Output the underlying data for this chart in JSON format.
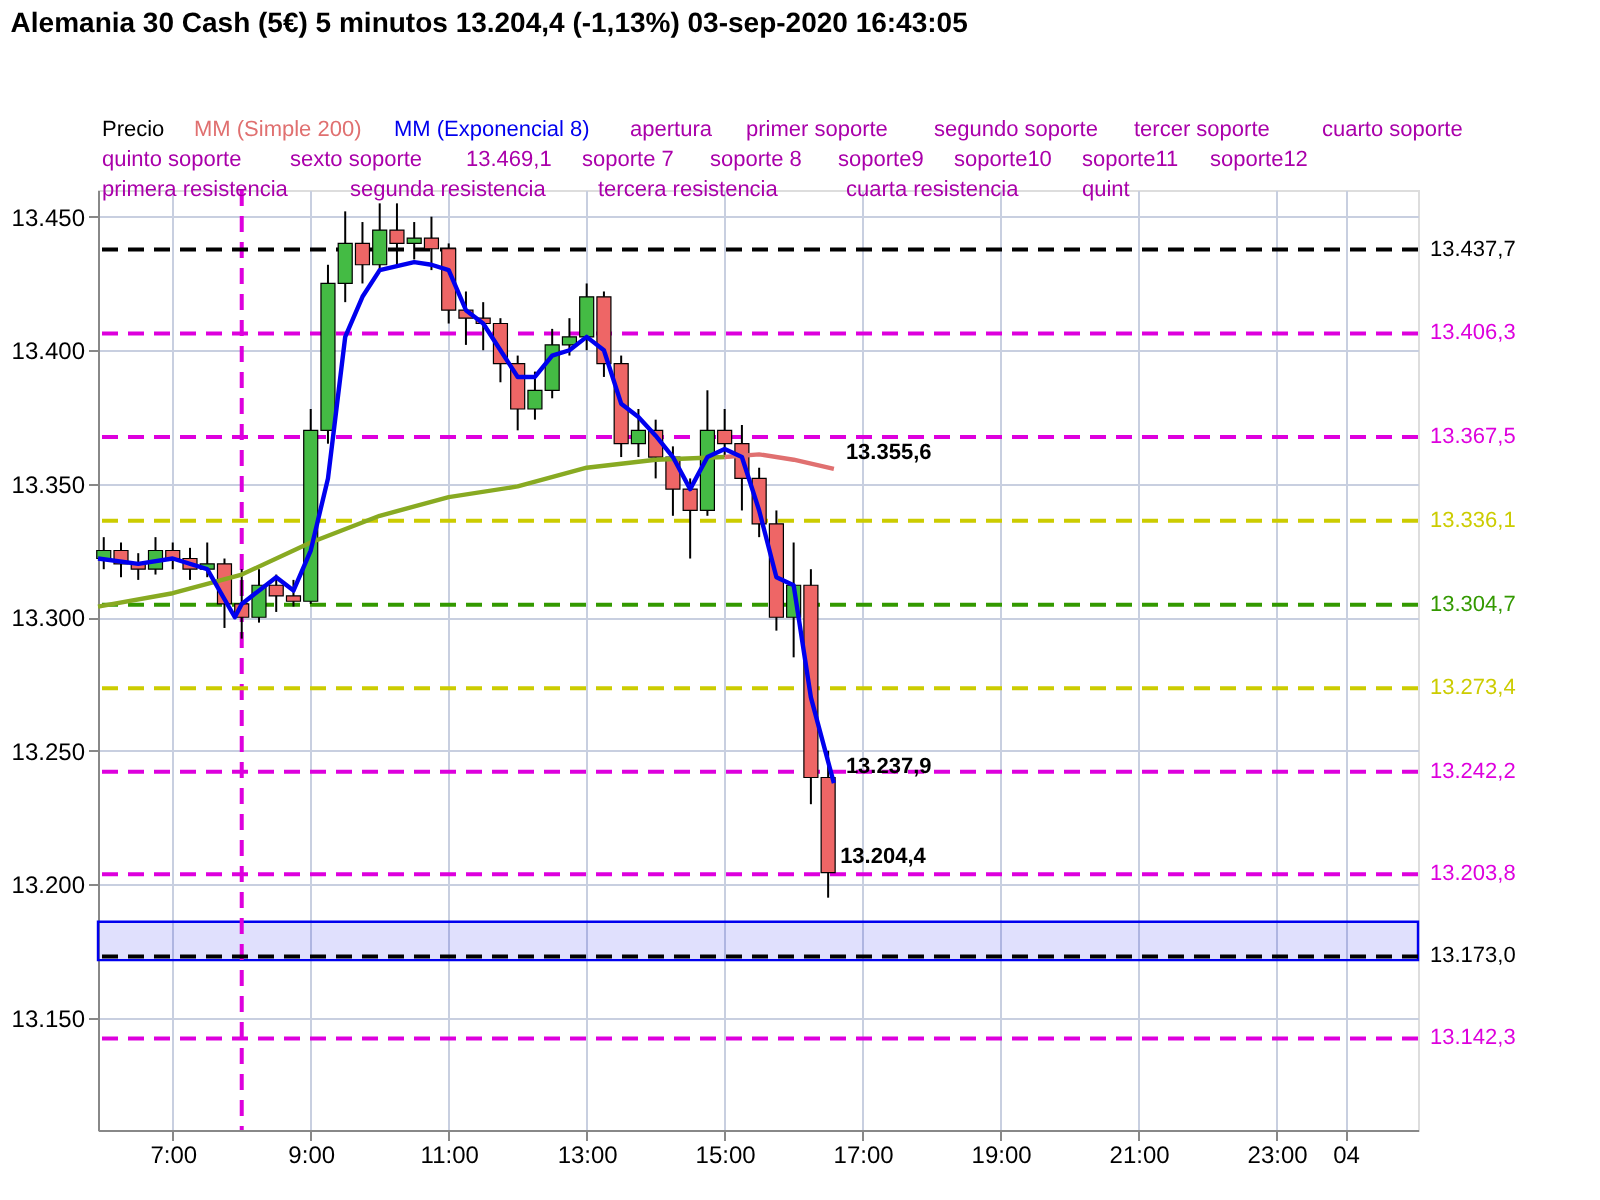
{
  "chart_data": {
    "type": "candlestick",
    "title": "Alemania 30 Cash (5€)   5 minutos   13.204,4 (-1,13%)   03-sep-2020 16:43:05",
    "x": [
      "2020-09-03T06:00",
      "2020-09-03T06:15",
      "2020-09-03T06:30",
      "2020-09-03T06:45",
      "2020-09-03T07:00",
      "2020-09-03T07:15",
      "2020-09-03T07:30",
      "2020-09-03T07:45",
      "2020-09-03T08:00",
      "2020-09-03T08:15",
      "2020-09-03T08:30",
      "2020-09-03T08:45",
      "2020-09-03T09:00",
      "2020-09-03T09:15",
      "2020-09-03T09:30",
      "2020-09-03T09:45",
      "2020-09-03T10:00",
      "2020-09-03T10:15",
      "2020-09-03T10:30",
      "2020-09-03T10:45",
      "2020-09-03T11:00",
      "2020-09-03T11:15",
      "2020-09-03T11:30",
      "2020-09-03T11:45",
      "2020-09-03T12:00",
      "2020-09-03T12:15",
      "2020-09-03T12:30",
      "2020-09-03T12:45",
      "2020-09-03T13:00",
      "2020-09-03T13:15",
      "2020-09-03T13:30",
      "2020-09-03T13:45",
      "2020-09-03T14:00",
      "2020-09-03T14:15",
      "2020-09-03T14:30",
      "2020-09-03T14:45",
      "2020-09-03T15:00",
      "2020-09-03T15:15",
      "2020-09-03T15:30",
      "2020-09-03T15:45",
      "2020-09-03T16:00",
      "2020-09-03T16:15",
      "2020-09-03T16:30"
    ],
    "ohlc": [
      [
        13322,
        13330,
        13318,
        13325
      ],
      [
        13325,
        13328,
        13315,
        13320
      ],
      [
        13320,
        13324,
        13314,
        13318
      ],
      [
        13318,
        13330,
        13316,
        13325
      ],
      [
        13325,
        13328,
        13318,
        13322
      ],
      [
        13322,
        13326,
        13314,
        13318
      ],
      [
        13318,
        13328,
        13315,
        13320
      ],
      [
        13320,
        13322,
        13296,
        13305
      ],
      [
        13305,
        13318,
        13292,
        13300
      ],
      [
        13300,
        13318,
        13298,
        13312
      ],
      [
        13312,
        13316,
        13302,
        13308
      ],
      [
        13308,
        13314,
        13304,
        13306
      ],
      [
        13306,
        13378,
        13305,
        13370
      ],
      [
        13370,
        13432,
        13365,
        13425
      ],
      [
        13425,
        13452,
        13418,
        13440
      ],
      [
        13440,
        13448,
        13425,
        13432
      ],
      [
        13432,
        13455,
        13430,
        13445
      ],
      [
        13445,
        13455,
        13432,
        13440
      ],
      [
        13440,
        13448,
        13434,
        13442
      ],
      [
        13442,
        13450,
        13430,
        13438
      ],
      [
        13438,
        13440,
        13410,
        13415
      ],
      [
        13415,
        13422,
        13402,
        13412
      ],
      [
        13412,
        13418,
        13400,
        13410
      ],
      [
        13410,
        13412,
        13388,
        13395
      ],
      [
        13395,
        13398,
        13370,
        13378
      ],
      [
        13378,
        13392,
        13374,
        13385
      ],
      [
        13385,
        13408,
        13382,
        13402
      ],
      [
        13402,
        13412,
        13398,
        13405
      ],
      [
        13405,
        13425,
        13400,
        13420
      ],
      [
        13420,
        13422,
        13390,
        13395
      ],
      [
        13395,
        13398,
        13360,
        13365
      ],
      [
        13365,
        13378,
        13360,
        13370
      ],
      [
        13370,
        13374,
        13352,
        13360
      ],
      [
        13360,
        13364,
        13338,
        13348
      ],
      [
        13348,
        13352,
        13322,
        13340
      ],
      [
        13340,
        13385,
        13338,
        13370
      ],
      [
        13370,
        13378,
        13360,
        13365
      ],
      [
        13365,
        13372,
        13340,
        13352
      ],
      [
        13352,
        13356,
        13330,
        13335
      ],
      [
        13335,
        13340,
        13295,
        13300
      ],
      [
        13300,
        13328,
        13285,
        13312
      ],
      [
        13312,
        13318,
        13230,
        13240
      ],
      [
        13240,
        13250,
        13195,
        13204.4
      ]
    ],
    "series": [
      {
        "type": "line",
        "color": "#88aa22",
        "x": [
          "2020-09-03T05:55",
          "2020-09-03T07:00",
          "2020-09-03T08:00",
          "2020-09-03T09:00",
          "2020-09-03T10:00",
          "2020-09-03T11:00",
          "2020-09-03T12:00",
          "2020-09-03T13:00",
          "2020-09-03T14:00",
          "2020-09-03T15:00"
        ],
        "values": [
          13304,
          13309,
          13316,
          13328,
          13338,
          13345,
          13349,
          13356,
          13359,
          13360
        ]
      },
      {
        "type": "line",
        "name": "MM (Simple 200)",
        "color": "#e07070",
        "x": [
          "2020-09-03T15:00",
          "2020-09-03T15:30",
          "2020-09-03T16:00",
          "2020-09-03T16:35"
        ],
        "values": [
          13360,
          13361,
          13359,
          13355.6
        ]
      },
      {
        "type": "line",
        "name": "MM (Exponencial 8)",
        "color": "#0000ee",
        "x": [
          "2020-09-03T05:55",
          "2020-09-03T06:30",
          "2020-09-03T07:00",
          "2020-09-03T07:30",
          "2020-09-03T07:54",
          "2020-09-03T08:00",
          "2020-09-03T08:30",
          "2020-09-03T08:45",
          "2020-09-03T09:00",
          "2020-09-03T09:15",
          "2020-09-03T09:30",
          "2020-09-03T09:45",
          "2020-09-03T10:00",
          "2020-09-03T10:30",
          "2020-09-03T10:45",
          "2020-09-03T11:00",
          "2020-09-03T11:15",
          "2020-09-03T11:30",
          "2020-09-03T11:45",
          "2020-09-03T12:00",
          "2020-09-03T12:15",
          "2020-09-03T12:30",
          "2020-09-03T12:45",
          "2020-09-03T13:00",
          "2020-09-03T13:15",
          "2020-09-03T13:30",
          "2020-09-03T13:45",
          "2020-09-03T14:00",
          "2020-09-03T14:15",
          "2020-09-03T14:30",
          "2020-09-03T14:45",
          "2020-09-03T15:00",
          "2020-09-03T15:15",
          "2020-09-03T15:30",
          "2020-09-03T15:45",
          "2020-09-03T16:00",
          "2020-09-03T16:15",
          "2020-09-03T16:35"
        ],
        "values": [
          13322,
          13320,
          13322,
          13318,
          13300,
          13305,
          13315,
          13310,
          13325,
          13352,
          13405,
          13420,
          13430,
          13433,
          13432,
          13430,
          13415,
          13410,
          13400,
          13390,
          13390,
          13398,
          13400,
          13405,
          13400,
          13380,
          13375,
          13368,
          13360,
          13348,
          13360,
          13363,
          13360,
          13340,
          13315,
          13312,
          13270,
          13237.9
        ]
      }
    ],
    "xlim": [
      "2020-09-03T05:55",
      "2020-09-04T01:03"
    ],
    "ylim": [
      13108,
      13460
    ],
    "xticks": [
      {
        "value": "2020-09-03T07:00",
        "label": "7:00"
      },
      {
        "value": "2020-09-03T09:00",
        "label": "9:00"
      },
      {
        "value": "2020-09-03T11:00",
        "label": "11:00"
      },
      {
        "value": "2020-09-03T13:00",
        "label": "13:00"
      },
      {
        "value": "2020-09-03T15:00",
        "label": "15:00"
      },
      {
        "value": "2020-09-03T17:00",
        "label": "17:00"
      },
      {
        "value": "2020-09-03T19:00",
        "label": "19:00"
      },
      {
        "value": "2020-09-03T21:00",
        "label": "21:00"
      },
      {
        "value": "2020-09-03T23:00",
        "label": "23:00"
      },
      {
        "value": "2020-09-04",
        "label": "04"
      }
    ],
    "yticks": [
      {
        "value": 13150,
        "label": "13.150"
      },
      {
        "value": 13200,
        "label": "13.200"
      },
      {
        "value": 13250,
        "label": "13.250"
      },
      {
        "value": 13300,
        "label": "13.300"
      },
      {
        "value": 13350,
        "label": "13.350"
      },
      {
        "value": 13400,
        "label": "13.400"
      },
      {
        "value": 13450,
        "label": "13.450"
      }
    ],
    "ref_lines": [
      {
        "axis": "x",
        "value": "2020-09-03T08:00",
        "color": "#dd00dd",
        "line_style": "dashed"
      },
      {
        "axis": "y",
        "value": 13437.7,
        "label": "13.437,7",
        "color": "#000000",
        "line_style": "dashed"
      },
      {
        "axis": "y",
        "value": 13406.3,
        "label": "13.406,3",
        "color": "#dd00dd",
        "line_style": "dashed"
      },
      {
        "axis": "y",
        "value": 13367.5,
        "label": "13.367,5",
        "color": "#dd00dd",
        "line_style": "dashed"
      },
      {
        "axis": "y",
        "value": 13336.1,
        "label": "13.336,1",
        "color": "#cccc00",
        "line_style": "dashed"
      },
      {
        "axis": "y",
        "value": 13304.7,
        "label": "13.304,7",
        "color": "#339900",
        "line_style": "dashed"
      },
      {
        "axis": "y",
        "value": 13273.4,
        "label": "13.273,4",
        "color": "#cccc00",
        "line_style": "dashed"
      },
      {
        "axis": "y",
        "value": 13242.2,
        "label": "13.242,2",
        "color": "#dd00dd",
        "line_style": "dashed"
      },
      {
        "axis": "y",
        "value": 13203.8,
        "label": "13.203,8",
        "color": "#dd00dd",
        "line_style": "dashed"
      },
      {
        "axis": "y",
        "value": 13173.0,
        "label": "13.173,0",
        "color": "#000000",
        "line_style": "dashed"
      },
      {
        "axis": "y",
        "value": 13142.3,
        "label": "13.142,3",
        "color": "#dd00dd",
        "line_style": "dashed"
      }
    ],
    "bands": [
      {
        "axis": "y",
        "from": 13171.6,
        "to": 13186,
        "color": "#0000ee"
      }
    ],
    "annotations": [
      "Precio",
      "apertura",
      "primer soporte",
      "segundo soporte",
      "tercer soporte",
      "cuarto soporte",
      "quinto soporte",
      "sexto soporte",
      "13.469,1",
      "soporte 7",
      "soporte 8",
      "soporte9",
      "soporte10",
      "soporte11",
      "soporte12",
      "primera resistencia",
      "segunda resistencia",
      "tercera resistencia",
      "cuarta resistencia",
      "quint",
      {
        "text": "13.355,6",
        "x": "2020-09-03T16:35",
        "y": 13355.6
      },
      {
        "text": "13.237,9",
        "x": "2020-09-03T16:35",
        "y": 13237.9
      },
      {
        "text": "13.204,4",
        "x": "2020-09-03T16:30",
        "y": 13204.4
      }
    ],
    "grid": true,
    "legend": "top",
    "line_style": "solid",
    "marker": "none"
  }
}
